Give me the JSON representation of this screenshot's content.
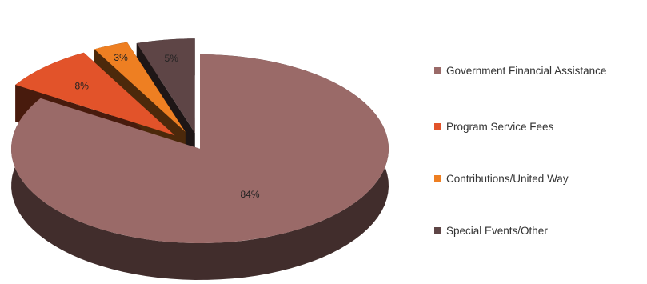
{
  "chart_data": {
    "type": "pie",
    "title": "",
    "slices": [
      {
        "name": "Government Financial Assistance",
        "value": 84,
        "label": "84%",
        "color": "#9a6a68"
      },
      {
        "name": "Program Service Fees",
        "value": 8,
        "label": "8%",
        "color": "#e2532a"
      },
      {
        "name": "Contributions/United Way",
        "value": 3,
        "label": "3%",
        "color": "#ee7f22"
      },
      {
        "name": "Special Events/Other",
        "value": 5,
        "label": "5%",
        "color": "#5e4546"
      }
    ],
    "exploded": true,
    "three_d": true,
    "legend_position": "right"
  }
}
